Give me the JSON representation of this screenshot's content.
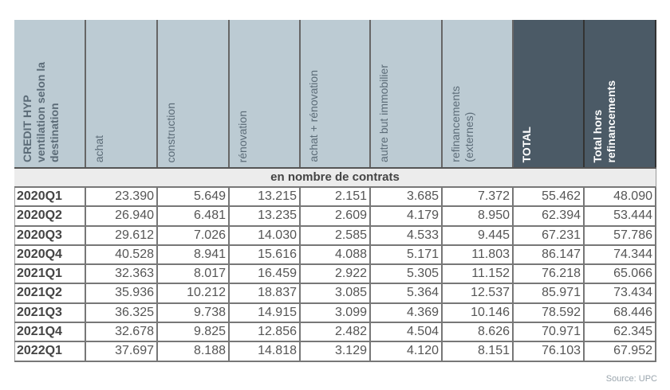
{
  "columns": [
    "CREDIT HYP\nventilation selon la\ndestination",
    "achat",
    "construction",
    "rénovation",
    "achat + rénovation",
    "autre but immobilier",
    "refinancements\n(externes)",
    "TOTAL",
    "Total hors\nrefinancements"
  ],
  "dark_columns": [
    7,
    8
  ],
  "colors": {
    "header_light": "#bccbd3",
    "header_dark": "#4b5a66"
  },
  "subheader": "en nombre de contrats",
  "rows": [
    [
      "2020Q1",
      "23.390",
      "5.649",
      "13.215",
      "2.151",
      "3.685",
      "7.372",
      "55.462",
      "48.090"
    ],
    [
      "2020Q2",
      "26.940",
      "6.481",
      "13.235",
      "2.609",
      "4.179",
      "8.950",
      "62.394",
      "53.444"
    ],
    [
      "2020Q3",
      "29.612",
      "7.026",
      "14.030",
      "2.585",
      "4.533",
      "9.445",
      "67.231",
      "57.786"
    ],
    [
      "2020Q4",
      "40.528",
      "8.941",
      "15.616",
      "4.088",
      "5.171",
      "11.803",
      "86.147",
      "74.344"
    ],
    [
      "2021Q1",
      "32.363",
      "8.017",
      "16.459",
      "2.922",
      "5.305",
      "11.152",
      "76.218",
      "65.066"
    ],
    [
      "2021Q2",
      "35.936",
      "10.212",
      "18.837",
      "3.085",
      "5.364",
      "12.537",
      "85.971",
      "73.434"
    ],
    [
      "2021Q3",
      "36.325",
      "9.738",
      "14.915",
      "3.099",
      "4.369",
      "10.146",
      "78.592",
      "68.446"
    ],
    [
      "2021Q4",
      "32.678",
      "9.825",
      "12.856",
      "2.482",
      "4.504",
      "8.626",
      "70.971",
      "62.345"
    ],
    [
      "2022Q1",
      "37.697",
      "8.188",
      "14.818",
      "3.129",
      "4.120",
      "8.151",
      "76.103",
      "67.952"
    ]
  ],
  "source": "Source: UPC"
}
